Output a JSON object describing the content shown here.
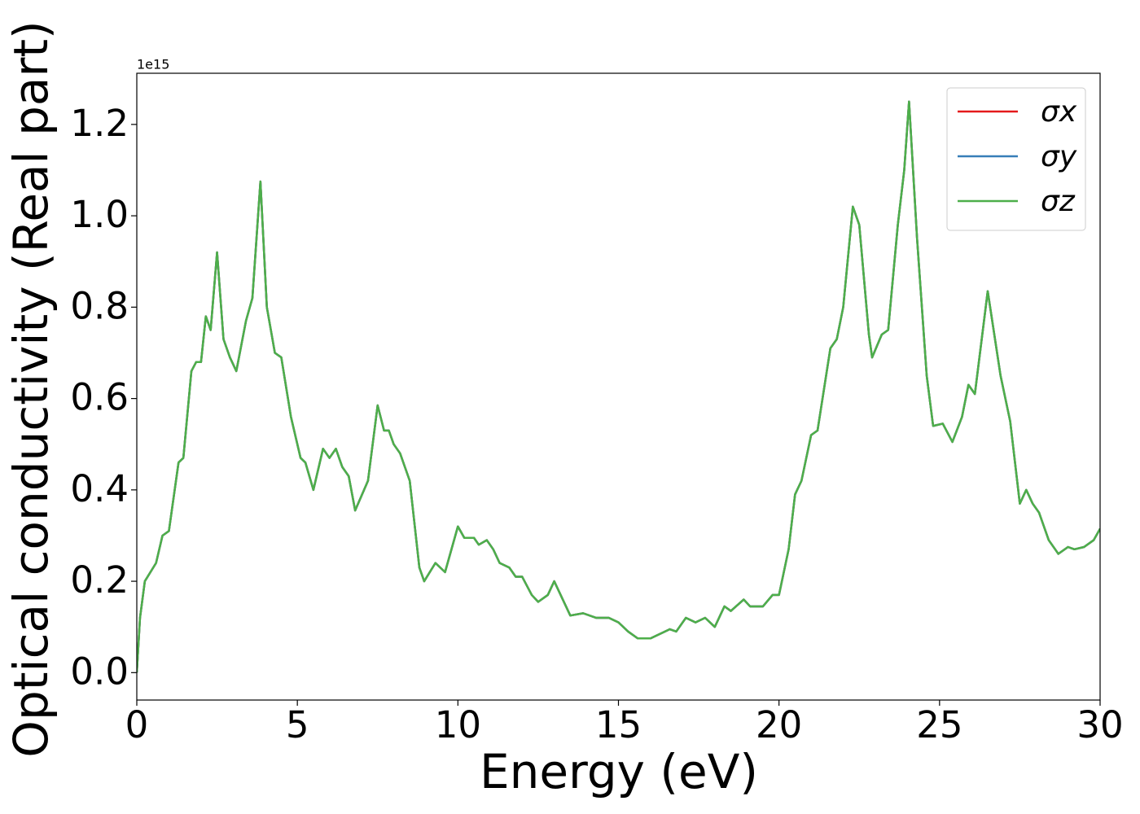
{
  "chart_data": {
    "type": "line",
    "xlabel": "Energy (eV)",
    "ylabel": "Optical conductivity (Real part)",
    "y_offset_label": "1e15",
    "x": [
      0,
      0.1,
      0.25,
      0.6,
      0.8,
      1.0,
      1.3,
      1.45,
      1.7,
      1.85,
      2.0,
      2.15,
      2.3,
      2.5,
      2.7,
      2.9,
      3.1,
      3.4,
      3.6,
      3.85,
      4.05,
      4.3,
      4.5,
      4.8,
      5.1,
      5.25,
      5.5,
      5.8,
      6.0,
      6.2,
      6.4,
      6.6,
      6.8,
      7.2,
      7.5,
      7.7,
      7.85,
      8.0,
      8.2,
      8.5,
      8.8,
      8.95,
      9.3,
      9.6,
      10.0,
      10.2,
      10.5,
      10.65,
      10.9,
      11.1,
      11.3,
      11.6,
      11.8,
      12.0,
      12.3,
      12.5,
      12.8,
      13.0,
      13.2,
      13.5,
      13.9,
      14.3,
      14.7,
      15.0,
      15.3,
      15.6,
      16.0,
      16.3,
      16.6,
      16.8,
      17.1,
      17.4,
      17.7,
      18.0,
      18.3,
      18.5,
      18.9,
      19.1,
      19.5,
      19.8,
      20.0,
      20.3,
      20.5,
      20.7,
      21.0,
      21.2,
      21.6,
      21.8,
      22.0,
      22.3,
      22.5,
      22.8,
      22.9,
      23.2,
      23.4,
      23.7,
      23.9,
      24.05,
      24.3,
      24.6,
      24.8,
      25.1,
      25.4,
      25.7,
      25.9,
      26.1,
      26.5,
      26.9,
      27.2,
      27.5,
      27.7,
      27.9,
      28.1,
      28.4,
      28.7,
      29.0,
      29.2,
      29.5,
      29.8,
      30.0
    ],
    "series": [
      {
        "name": "σx",
        "color": "#e41a1c",
        "values": [
          0.0,
          0.12,
          0.2,
          0.24,
          0.3,
          0.31,
          0.46,
          0.47,
          0.66,
          0.68,
          0.68,
          0.78,
          0.75,
          0.92,
          0.73,
          0.69,
          0.66,
          0.77,
          0.82,
          1.075,
          0.8,
          0.7,
          0.69,
          0.56,
          0.47,
          0.46,
          0.4,
          0.49,
          0.47,
          0.49,
          0.45,
          0.43,
          0.355,
          0.42,
          0.585,
          0.53,
          0.53,
          0.5,
          0.48,
          0.42,
          0.23,
          0.2,
          0.24,
          0.22,
          0.32,
          0.295,
          0.295,
          0.28,
          0.29,
          0.27,
          0.24,
          0.23,
          0.21,
          0.21,
          0.17,
          0.155,
          0.17,
          0.2,
          0.17,
          0.125,
          0.13,
          0.12,
          0.12,
          0.11,
          0.09,
          0.075,
          0.075,
          0.085,
          0.095,
          0.09,
          0.12,
          0.11,
          0.12,
          0.1,
          0.145,
          0.135,
          0.16,
          0.145,
          0.145,
          0.17,
          0.17,
          0.27,
          0.39,
          0.42,
          0.52,
          0.53,
          0.71,
          0.73,
          0.8,
          1.02,
          0.98,
          0.74,
          0.69,
          0.74,
          0.75,
          0.98,
          1.1,
          1.25,
          0.95,
          0.65,
          0.54,
          0.545,
          0.505,
          0.56,
          0.63,
          0.61,
          0.835,
          0.65,
          0.55,
          0.37,
          0.4,
          0.37,
          0.35,
          0.29,
          0.26,
          0.275,
          0.27,
          0.275,
          0.29,
          0.315
        ]
      },
      {
        "name": "σy",
        "color": "#377eb8",
        "values": [
          0.0,
          0.12,
          0.2,
          0.24,
          0.3,
          0.31,
          0.46,
          0.47,
          0.66,
          0.68,
          0.68,
          0.78,
          0.75,
          0.92,
          0.73,
          0.69,
          0.66,
          0.77,
          0.82,
          1.075,
          0.8,
          0.7,
          0.69,
          0.56,
          0.47,
          0.46,
          0.4,
          0.49,
          0.47,
          0.49,
          0.45,
          0.43,
          0.355,
          0.42,
          0.585,
          0.53,
          0.53,
          0.5,
          0.48,
          0.42,
          0.23,
          0.2,
          0.24,
          0.22,
          0.32,
          0.295,
          0.295,
          0.28,
          0.29,
          0.27,
          0.24,
          0.23,
          0.21,
          0.21,
          0.17,
          0.155,
          0.17,
          0.2,
          0.17,
          0.125,
          0.13,
          0.12,
          0.12,
          0.11,
          0.09,
          0.075,
          0.075,
          0.085,
          0.095,
          0.09,
          0.12,
          0.11,
          0.12,
          0.1,
          0.145,
          0.135,
          0.16,
          0.145,
          0.145,
          0.17,
          0.17,
          0.27,
          0.39,
          0.42,
          0.52,
          0.53,
          0.71,
          0.73,
          0.8,
          1.02,
          0.98,
          0.74,
          0.69,
          0.74,
          0.75,
          0.98,
          1.1,
          1.25,
          0.95,
          0.65,
          0.54,
          0.545,
          0.505,
          0.56,
          0.63,
          0.61,
          0.835,
          0.65,
          0.55,
          0.37,
          0.4,
          0.37,
          0.35,
          0.29,
          0.26,
          0.275,
          0.27,
          0.275,
          0.29,
          0.315
        ]
      },
      {
        "name": "σz",
        "color": "#4daf4a",
        "values": [
          0.0,
          0.12,
          0.2,
          0.24,
          0.3,
          0.31,
          0.46,
          0.47,
          0.66,
          0.68,
          0.68,
          0.78,
          0.75,
          0.92,
          0.73,
          0.69,
          0.66,
          0.77,
          0.82,
          1.075,
          0.8,
          0.7,
          0.69,
          0.56,
          0.47,
          0.46,
          0.4,
          0.49,
          0.47,
          0.49,
          0.45,
          0.43,
          0.355,
          0.42,
          0.585,
          0.53,
          0.53,
          0.5,
          0.48,
          0.42,
          0.23,
          0.2,
          0.24,
          0.22,
          0.32,
          0.295,
          0.295,
          0.28,
          0.29,
          0.27,
          0.24,
          0.23,
          0.21,
          0.21,
          0.17,
          0.155,
          0.17,
          0.2,
          0.17,
          0.125,
          0.13,
          0.12,
          0.12,
          0.11,
          0.09,
          0.075,
          0.075,
          0.085,
          0.095,
          0.09,
          0.12,
          0.11,
          0.12,
          0.1,
          0.145,
          0.135,
          0.16,
          0.145,
          0.145,
          0.17,
          0.17,
          0.27,
          0.39,
          0.42,
          0.52,
          0.53,
          0.71,
          0.73,
          0.8,
          1.02,
          0.98,
          0.74,
          0.69,
          0.74,
          0.75,
          0.98,
          1.1,
          1.25,
          0.95,
          0.65,
          0.54,
          0.545,
          0.505,
          0.56,
          0.63,
          0.61,
          0.835,
          0.65,
          0.55,
          0.37,
          0.4,
          0.37,
          0.35,
          0.29,
          0.26,
          0.275,
          0.27,
          0.275,
          0.29,
          0.315
        ]
      }
    ],
    "xlim": [
      0,
      30
    ],
    "xticks": [
      0,
      5,
      10,
      15,
      20,
      25,
      30
    ],
    "ylim": [
      -0.06,
      1.312
    ],
    "yticks": [
      {
        "value": 0,
        "label": "0.0"
      },
      0.2,
      0.4,
      0.6,
      0.8,
      {
        "value": 1,
        "label": "1.0"
      },
      1.2
    ],
    "grid": false,
    "legend": "upper right"
  }
}
